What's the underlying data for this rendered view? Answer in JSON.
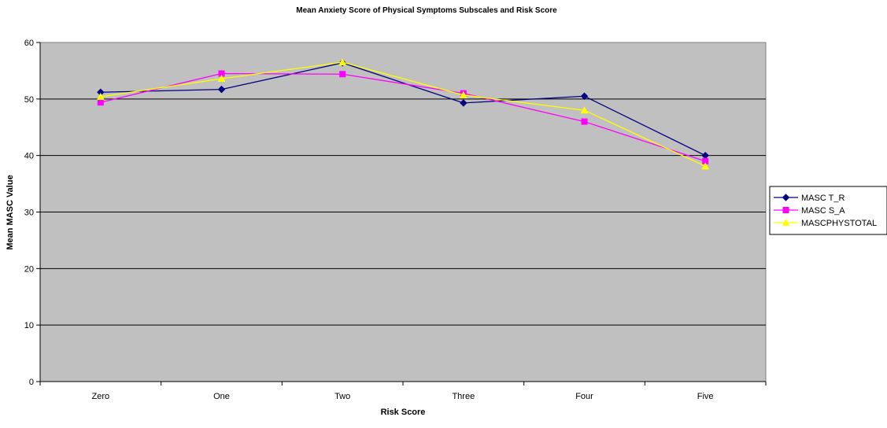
{
  "chart_data": {
    "type": "line",
    "title": "Mean Anxiety Score of Physical Symptoms Subscales and Risk Score",
    "xlabel": "Risk Score",
    "ylabel": "Mean MASC Value",
    "categories": [
      "Zero",
      "One",
      "Two",
      "Three",
      "Four",
      "Five"
    ],
    "ylim": [
      0,
      60
    ],
    "yticks": [
      "0",
      "10",
      "20",
      "30",
      "40",
      "50",
      "60"
    ],
    "grid": true,
    "legend_position": "right",
    "plot_background": "#c0c0c0",
    "series": [
      {
        "name": "MASC T_R",
        "color": "#000080",
        "marker": "diamond",
        "values": [
          51.2,
          51.7,
          56.4,
          49.3,
          50.5,
          40.0
        ]
      },
      {
        "name": "MASC S_A",
        "color": "#ff00ff",
        "marker": "square",
        "values": [
          49.4,
          54.5,
          54.4,
          51.0,
          46.0,
          39.0
        ]
      },
      {
        "name": "MASCPHYSTOTAL",
        "color": "#ffff00",
        "marker": "triangle",
        "values": [
          50.4,
          53.6,
          56.5,
          50.7,
          48.0,
          38.1
        ]
      }
    ]
  }
}
